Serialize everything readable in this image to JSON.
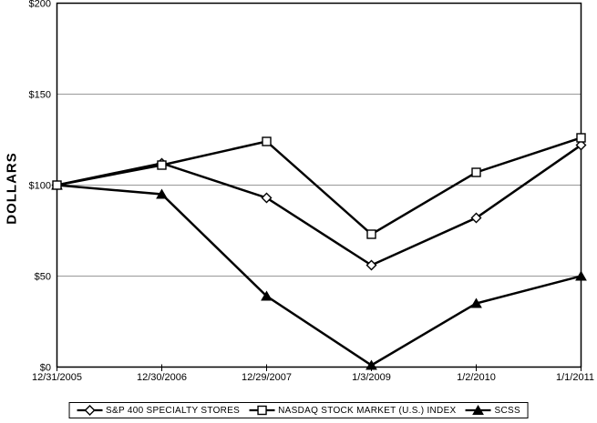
{
  "figure": {
    "background": "#ffffff",
    "axis_color": "#000000",
    "gridline_color": "#999999",
    "series_color": "#000000"
  },
  "chart_data": {
    "type": "line",
    "title": "",
    "xlabel": "",
    "ylabel": "DOLLARS",
    "ylim": [
      0,
      200
    ],
    "yticks": [
      0,
      50,
      100,
      150,
      200
    ],
    "ytick_labels": [
      "$0",
      "$50",
      "$100",
      "$150",
      "$200"
    ],
    "gridlines_at": [
      50,
      100,
      150
    ],
    "grid": "horizontal",
    "legend_position": "bottom-center",
    "categories": [
      "12/31/2005",
      "12/30/2006",
      "12/29/2007",
      "1/3/2009",
      "1/2/2010",
      "1/1/2011"
    ],
    "series": [
      {
        "name": "S&P 400 SPECIALTY STORES",
        "marker": "diamond-open",
        "values": [
          100,
          112,
          93,
          56,
          82,
          122
        ]
      },
      {
        "name": "NASDAQ STOCK MARKET (U.S.) INDEX",
        "marker": "square-open",
        "values": [
          100,
          111,
          124,
          73,
          107,
          126
        ]
      },
      {
        "name": "SCSS",
        "marker": "triangle-filled",
        "values": [
          100,
          95,
          39,
          1,
          35,
          50
        ]
      }
    ]
  }
}
